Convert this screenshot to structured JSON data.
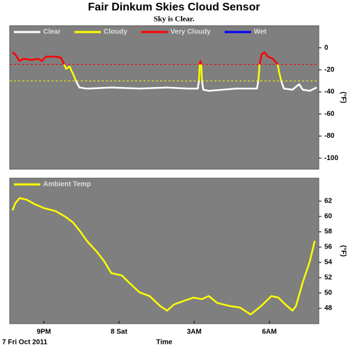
{
  "title": "Fair Dinkum Skies Cloud Sensor",
  "subtitle": "Sky is Clear.",
  "chart_data": [
    {
      "type": "line",
      "y_label": "(°F)",
      "x": [
        19.75,
        19.86,
        20.03,
        20.19,
        20.5,
        20.78,
        20.92,
        21.08,
        21.47,
        21.69,
        21.81,
        21.89,
        22.03,
        22.19,
        22.28,
        22.42,
        22.72,
        23.69,
        24.81,
        25.92,
        26.75,
        27.14,
        27.19,
        27.22,
        27.25,
        27.28,
        27.31,
        27.36,
        27.58,
        28.69,
        29.5,
        29.56,
        29.61,
        29.69,
        29.81,
        29.94,
        30.14,
        30.25,
        30.33,
        30.39,
        30.47,
        30.58,
        30.92,
        31.19,
        31.33,
        31.61,
        31.89
      ],
      "series": [
        {
          "name": "Clear",
          "color": "#ffffff",
          "values": [
            null,
            null,
            null,
            null,
            null,
            null,
            null,
            null,
            null,
            null,
            null,
            null,
            null,
            null,
            -30,
            -36,
            -37,
            -36,
            -37,
            -36,
            -37,
            -37,
            -30,
            null,
            null,
            null,
            -30,
            -38,
            -39,
            -37,
            -37,
            -30,
            null,
            null,
            null,
            null,
            null,
            null,
            null,
            null,
            -30,
            -37,
            -38,
            -33,
            -38,
            -39,
            -36
          ]
        },
        {
          "name": "Cloudy",
          "color": "#ffff00",
          "values": [
            null,
            null,
            null,
            null,
            null,
            null,
            null,
            null,
            null,
            null,
            -15,
            -19,
            -17,
            -25,
            -30,
            null,
            null,
            null,
            null,
            null,
            null,
            null,
            -30,
            -15,
            null,
            -15,
            -30,
            null,
            null,
            null,
            null,
            -30,
            -15,
            null,
            null,
            null,
            null,
            null,
            -15,
            -22,
            -30,
            null,
            null,
            null,
            null,
            null,
            null
          ]
        },
        {
          "name": "Very Cloudy",
          "color": "#ff0000",
          "values": [
            -4,
            -6,
            -12,
            -10,
            -11,
            -10,
            -12,
            -8,
            -8,
            -9,
            -15,
            null,
            null,
            null,
            null,
            null,
            null,
            null,
            null,
            null,
            null,
            null,
            null,
            -15,
            -12,
            -15,
            null,
            null,
            null,
            null,
            null,
            null,
            -15,
            -6,
            -4,
            -8,
            -10,
            -13,
            -15,
            null,
            null,
            null,
            null,
            null,
            null,
            null,
            null
          ]
        },
        {
          "name": "Wet",
          "color": "#0000ff",
          "values": [
            null,
            null,
            null,
            null,
            null,
            null,
            null,
            null,
            null,
            null,
            null,
            null,
            null,
            null,
            null,
            null,
            null,
            null,
            null,
            null,
            null,
            null,
            null,
            null,
            null,
            null,
            null,
            null,
            null,
            null,
            null,
            null,
            null,
            null,
            null,
            null,
            null,
            null,
            null,
            null,
            null,
            null,
            null,
            null,
            null,
            null,
            null
          ]
        }
      ],
      "thresholds": [
        {
          "value": -15,
          "color": "#ff0000"
        },
        {
          "value": -30,
          "color": "#ffff00"
        }
      ],
      "xlim": [
        19.64,
        31.97
      ],
      "ylim": [
        -110,
        20
      ],
      "yticks": [
        0,
        -20,
        -40,
        -60,
        -80,
        -100
      ]
    },
    {
      "type": "line",
      "y_label": "(°F)",
      "x_label": "Time",
      "x_note": "7 Fri Oct 2011",
      "x": [
        19.75,
        19.86,
        20.03,
        20.31,
        20.64,
        21.0,
        21.47,
        21.89,
        22.17,
        22.44,
        22.72,
        23.14,
        23.42,
        23.69,
        24.11,
        24.39,
        24.81,
        25.22,
        25.64,
        25.92,
        26.19,
        26.61,
        26.97,
        27.31,
        27.58,
        27.92,
        28.42,
        28.83,
        29.25,
        29.67,
        30.08,
        30.36,
        30.64,
        30.92,
        31.06,
        31.33,
        31.61,
        31.81
      ],
      "series": [
        {
          "name": "Ambient Temp",
          "color": "#ffff00",
          "values": [
            60.8,
            61.7,
            62.4,
            62.2,
            61.6,
            61.1,
            60.7,
            59.9,
            59.2,
            58.1,
            56.8,
            55.3,
            54.1,
            52.6,
            52.3,
            51.4,
            50.1,
            49.6,
            48.3,
            47.7,
            48.5,
            49.0,
            49.4,
            49.2,
            49.6,
            48.7,
            48.3,
            48.1,
            47.2,
            48.3,
            49.6,
            49.4,
            48.5,
            47.7,
            48.3,
            51.4,
            54.1,
            56.8
          ]
        }
      ],
      "xlim": [
        19.64,
        31.97
      ],
      "ylim": [
        46,
        65
      ],
      "xticks": [
        {
          "value": 21,
          "label": "9PM"
        },
        {
          "value": 24,
          "label": "8 Sat"
        },
        {
          "value": 27,
          "label": "3AM"
        },
        {
          "value": 30,
          "label": "6AM"
        }
      ],
      "yticks": [
        62,
        60,
        58,
        56,
        54,
        52,
        50,
        48
      ]
    }
  ]
}
